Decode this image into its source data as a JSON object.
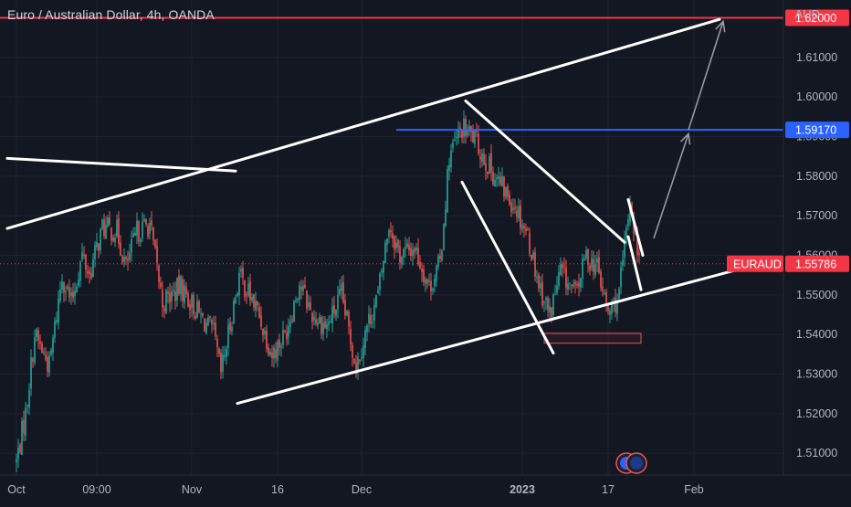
{
  "header": {
    "title": "Euro / Australian Dollar, 4h, OANDA",
    "currency": "AUD"
  },
  "colors": {
    "background": "#131722",
    "up_candle": "#26a69a",
    "down_candle": "#ef5350",
    "resistance_line": "#f23645",
    "target_line": "#2962ff",
    "price_label": "#f23645",
    "drawing": "#ffffff",
    "projection_arrow": "#9598a1",
    "axis_text": "#b2b5be"
  },
  "chart_data": {
    "type": "candlestick",
    "title": "Euro / Australian Dollar, 4h, OANDA",
    "ylabel": "AUD",
    "ylim": [
      1.5045,
      1.6245
    ],
    "y_ticks": [
      "1.51000",
      "1.52000",
      "1.53000",
      "1.54000",
      "1.55000",
      "1.56000",
      "1.57000",
      "1.58000",
      "1.59000",
      "1.60000",
      "1.61000"
    ],
    "x_ticks": [
      {
        "label": "Oct",
        "bar": 0
      },
      {
        "label": "09:00",
        "bar": 44
      },
      {
        "label": "Nov",
        "bar": 96
      },
      {
        "label": "16",
        "bar": 143
      },
      {
        "label": "Dec",
        "bar": 189
      },
      {
        "label": "2023",
        "bar": 277,
        "bold": true
      },
      {
        "label": "17",
        "bar": 324
      },
      {
        "label": "Feb",
        "bar": 371
      }
    ],
    "x_range_bars": [
      -5,
      460
    ],
    "price_path": [
      [
        0,
        1.508
      ],
      [
        5,
        1.52
      ],
      [
        10,
        1.54
      ],
      [
        18,
        1.532
      ],
      [
        25,
        1.555
      ],
      [
        30,
        1.548
      ],
      [
        36,
        1.56
      ],
      [
        40,
        1.555
      ],
      [
        47,
        1.567
      ],
      [
        55,
        1.566
      ],
      [
        60,
        1.557
      ],
      [
        66,
        1.566
      ],
      [
        73,
        1.568
      ],
      [
        80,
        1.548
      ],
      [
        90,
        1.552
      ],
      [
        100,
        1.545
      ],
      [
        108,
        1.54
      ],
      [
        112,
        1.53
      ],
      [
        122,
        1.555
      ],
      [
        132,
        1.546
      ],
      [
        140,
        1.535
      ],
      [
        147,
        1.54
      ],
      [
        155,
        1.553
      ],
      [
        162,
        1.545
      ],
      [
        170,
        1.542
      ],
      [
        178,
        1.55
      ],
      [
        186,
        1.532
      ],
      [
        192,
        1.542
      ],
      [
        198,
        1.55
      ],
      [
        204,
        1.568
      ],
      [
        210,
        1.56
      ],
      [
        218,
        1.562
      ],
      [
        226,
        1.552
      ],
      [
        232,
        1.558
      ],
      [
        237,
        1.585
      ],
      [
        244,
        1.592
      ],
      [
        250,
        1.59
      ],
      [
        258,
        1.583
      ],
      [
        266,
        1.577
      ],
      [
        274,
        1.572
      ],
      [
        280,
        1.565
      ],
      [
        286,
        1.553
      ],
      [
        292,
        1.545
      ],
      [
        298,
        1.556
      ],
      [
        306,
        1.55
      ],
      [
        312,
        1.56
      ],
      [
        318,
        1.557
      ],
      [
        324,
        1.545
      ],
      [
        330,
        1.55
      ],
      [
        333,
        1.562
      ],
      [
        336,
        1.574
      ],
      [
        338,
        1.568
      ],
      [
        341,
        1.558
      ]
    ],
    "horizontal_levels": [
      {
        "price": 1.62,
        "label": "1.62000",
        "color": "#f23645"
      },
      {
        "price": 1.5917,
        "label": "1.59170",
        "color": "#2962ff"
      }
    ],
    "last_price": {
      "symbol": "EURAUD",
      "price": 1.55786,
      "label": "1.55786"
    },
    "drawings": [
      {
        "name": "rising-upper-trendline",
        "points": [
          [
            -5,
            1.5668
          ],
          [
            385,
            1.6196
          ]
        ]
      },
      {
        "name": "downtrend-line",
        "points": [
          [
            -5,
            1.5845
          ],
          [
            120,
            1.5813
          ]
        ]
      },
      {
        "name": "rising-lower-trendline",
        "points": [
          [
            121,
            1.5226
          ],
          [
            399,
            1.5569
          ]
        ]
      },
      {
        "name": "wedge-upper-line",
        "points": [
          [
            246,
            1.599
          ],
          [
            333,
            1.5633
          ]
        ]
      },
      {
        "name": "wedge-lower-line",
        "points": [
          [
            244,
            1.5785
          ],
          [
            294,
            1.5353
          ]
        ]
      },
      {
        "name": "flag-line-1",
        "points": [
          [
            335,
            1.5741
          ],
          [
            343,
            1.56
          ]
        ]
      },
      {
        "name": "flag-line-2",
        "points": [
          [
            335,
            1.5647
          ],
          [
            342,
            1.5513
          ]
        ]
      }
    ],
    "zones": [
      {
        "name": "support-zone",
        "x": [
          289,
          342
        ],
        "y": [
          1.5378,
          1.5403
        ]
      }
    ],
    "arrows": [
      {
        "name": "projection-arrow-1",
        "from": [
          349,
          1.5643
        ],
        "to": [
          368,
          1.5907
        ]
      },
      {
        "name": "projection-arrow-2",
        "from": [
          368,
          1.5917
        ],
        "to": [
          387,
          1.6191
        ]
      }
    ]
  }
}
